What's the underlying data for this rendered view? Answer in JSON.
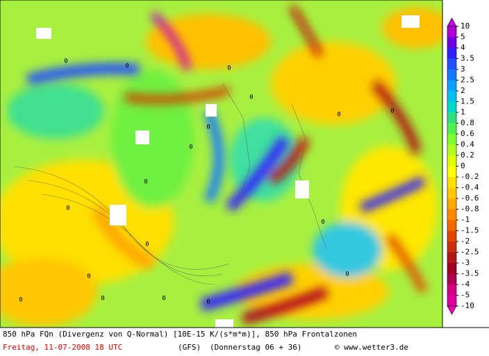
{
  "colorbar": {
    "labels": [
      "10",
      "5",
      "4",
      "3.5",
      "3",
      "2.5",
      "2",
      "1.5",
      "1",
      "0.8",
      "0.6",
      "0.4",
      "0.2",
      "0",
      "-0.2",
      "-0.4",
      "-0.6",
      "-0.8",
      "-1",
      "-1.5",
      "-2",
      "-2.5",
      "-3",
      "-3.5",
      "-4",
      "-5",
      "-10"
    ],
    "colors": [
      "#b000d0",
      "#7000e0",
      "#3020ff",
      "#2050ff",
      "#1878ff",
      "#10a0ff",
      "#00c0f0",
      "#00d8c8",
      "#30e080",
      "#50f050",
      "#80ff30",
      "#b0ff20",
      "#e0ff00",
      "#ffff00",
      "#ffe000",
      "#ffc800",
      "#ffa800",
      "#ff8800",
      "#f06800",
      "#e04800",
      "#c83010",
      "#b01818",
      "#a00020",
      "#b00050",
      "#d00080",
      "#e000a0"
    ],
    "top_color": "#c000e0",
    "bottom_color": "#f000b0"
  },
  "map": {
    "contour_labels": [
      "0",
      "0",
      "0",
      "0",
      "0",
      "0",
      "0",
      "0",
      "0",
      "0",
      "0",
      "0",
      "0",
      "0",
      "0",
      "0",
      "0",
      "0"
    ]
  },
  "footer": {
    "line1": "850 hPa FQn (Divergenz von Q-Normal) [10E-15 K/(s*m*m)], 850 hPa Frontalzonen",
    "date": "Freitag, 11-07-2008  18 UTC",
    "model": "(GFS)",
    "run": "(Donnerstag 06 + 36)",
    "copyright": "© www.wetter3.de"
  }
}
